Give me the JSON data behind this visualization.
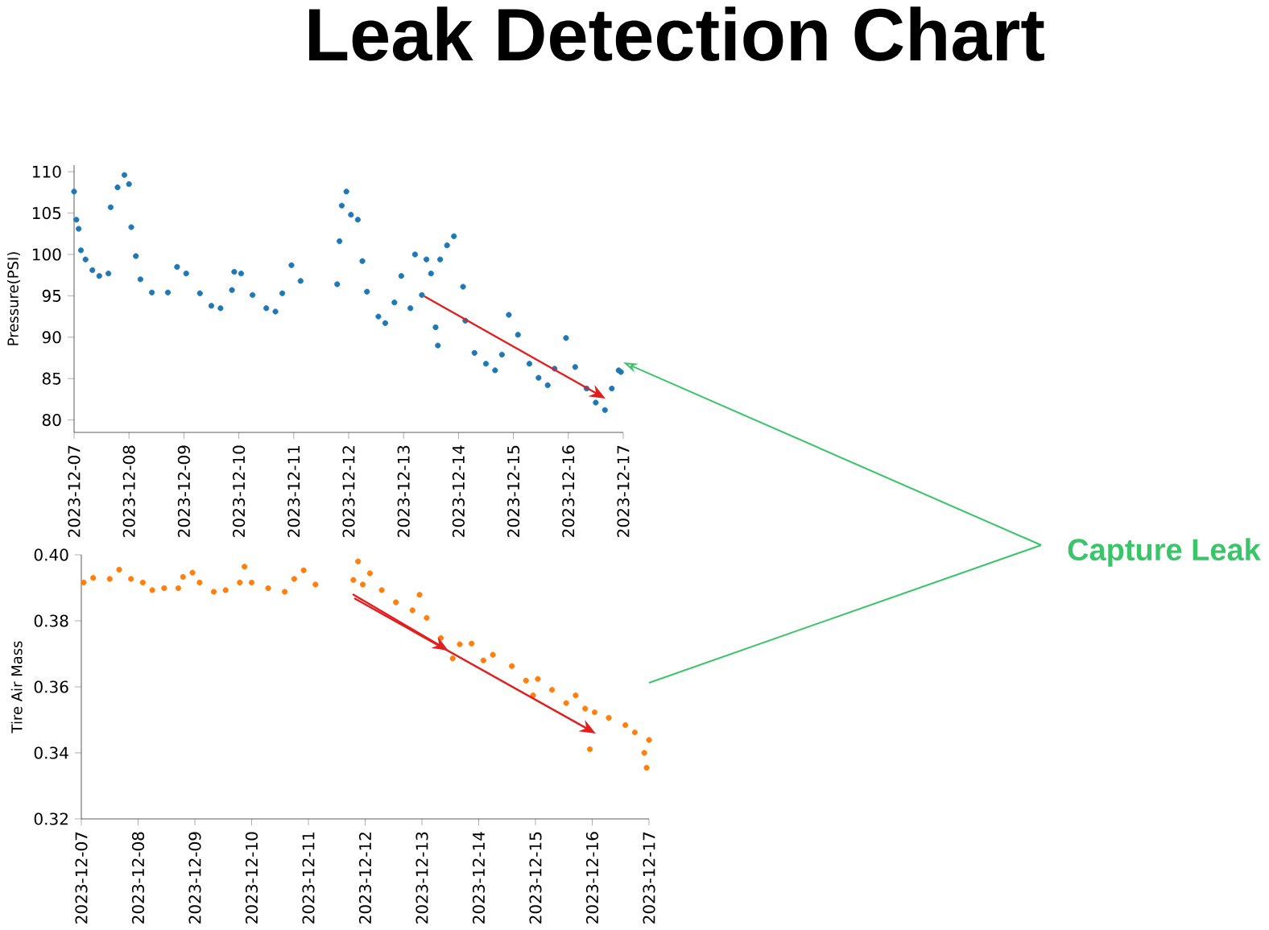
{
  "chart_data": [
    {
      "type": "scatter",
      "title": "Leak Detection Chart",
      "ylabel": "Pressure(PSI)",
      "color": "#1f77b4",
      "annotations": [
        "Capture Leak"
      ],
      "xlim": [
        "2023-12-07",
        "2023-12-17"
      ],
      "ylim": [
        78.5,
        110.8
      ],
      "xticks": [
        "2023-12-07",
        "2023-12-08",
        "2023-12-09",
        "2023-12-10",
        "2023-12-11",
        "2023-12-12",
        "2023-12-13",
        "2023-12-14",
        "2023-12-15",
        "2023-12-16",
        "2023-12-17"
      ],
      "yticks": [
        80,
        85,
        90,
        95,
        100,
        105,
        110
      ],
      "x": [
        "2023-12-07T00:00",
        "2023-12-07T01:00",
        "2023-12-07T02:00",
        "2023-12-07T03:00",
        "2023-12-07T05:00",
        "2023-12-07T08:00",
        "2023-12-07T11:00",
        "2023-12-07T15:00",
        "2023-12-07T16:00",
        "2023-12-07T19:00",
        "2023-12-07T22:00",
        "2023-12-08T00:00",
        "2023-12-08T01:00",
        "2023-12-08T03:00",
        "2023-12-08T05:00",
        "2023-12-08T10:00",
        "2023-12-08T17:00",
        "2023-12-08T21:00",
        "2023-12-09T01:00",
        "2023-12-09T07:00",
        "2023-12-09T12:00",
        "2023-12-09T16:00",
        "2023-12-09T21:00",
        "2023-12-09T22:00",
        "2023-12-10T01:00",
        "2023-12-10T06:00",
        "2023-12-10T12:00",
        "2023-12-10T16:00",
        "2023-12-10T19:00",
        "2023-12-10T23:00",
        "2023-12-11T03:00",
        "2023-12-11T19:00",
        "2023-12-11T20:00",
        "2023-12-11T21:00",
        "2023-12-11T23:00",
        "2023-12-12T01:00",
        "2023-12-12T04:00",
        "2023-12-12T06:00",
        "2023-12-12T08:00",
        "2023-12-12T13:00",
        "2023-12-12T16:00",
        "2023-12-12T20:00",
        "2023-12-12T23:00",
        "2023-12-13T03:00",
        "2023-12-13T05:00",
        "2023-12-13T08:00",
        "2023-12-13T10:00",
        "2023-12-13T12:00",
        "2023-12-13T14:00",
        "2023-12-13T15:00",
        "2023-12-13T16:00",
        "2023-12-13T19:00",
        "2023-12-13T22:00",
        "2023-12-14T02:00",
        "2023-12-14T03:00",
        "2023-12-14T07:00",
        "2023-12-14T12:00",
        "2023-12-14T16:00",
        "2023-12-14T19:00",
        "2023-12-14T22:00",
        "2023-12-15T02:00",
        "2023-12-15T07:00",
        "2023-12-15T11:00",
        "2023-12-15T15:00",
        "2023-12-15T18:00",
        "2023-12-15T23:00",
        "2023-12-16T03:00",
        "2023-12-16T08:00",
        "2023-12-16T12:00",
        "2023-12-16T16:00",
        "2023-12-16T19:00",
        "2023-12-16T22:00",
        "2023-12-16T23:00"
      ],
      "values": [
        107.6,
        104.2,
        103.1,
        100.5,
        99.4,
        98.1,
        97.4,
        97.7,
        105.7,
        108.1,
        109.6,
        108.5,
        103.3,
        99.8,
        97.0,
        95.4,
        95.4,
        98.5,
        97.7,
        95.3,
        93.8,
        93.5,
        95.7,
        97.9,
        97.7,
        95.1,
        93.5,
        93.1,
        95.3,
        98.7,
        96.8,
        96.4,
        101.6,
        105.9,
        107.6,
        104.8,
        104.2,
        99.2,
        95.5,
        92.5,
        91.7,
        94.2,
        97.4,
        93.5,
        100.0,
        95.1,
        99.4,
        97.7,
        91.2,
        89.0,
        99.4,
        101.1,
        102.2,
        96.1,
        92.0,
        88.1,
        86.8,
        86.0,
        87.9,
        92.7,
        90.3,
        86.8,
        85.1,
        84.2,
        86.2,
        89.9,
        86.4,
        83.8,
        82.1,
        81.2,
        83.8,
        86.0,
        85.8
      ]
    },
    {
      "type": "scatter",
      "ylabel": "Tire Air Mass",
      "color": "#ff7f0e",
      "xlim": [
        "2023-12-07",
        "2023-12-17"
      ],
      "ylim": [
        0.32,
        0.4
      ],
      "xticks": [
        "2023-12-07",
        "2023-12-08",
        "2023-12-09",
        "2023-12-10",
        "2023-12-11",
        "2023-12-12",
        "2023-12-13",
        "2023-12-14",
        "2023-12-15",
        "2023-12-16",
        "2023-12-17"
      ],
      "yticks": [
        0.32,
        0.34,
        0.36,
        0.38,
        {
          "value": 0.4,
          "label": "0.40"
        }
      ],
      "x": [
        "2023-12-07T01:00",
        "2023-12-07T05:00",
        "2023-12-07T12:00",
        "2023-12-07T16:00",
        "2023-12-07T21:00",
        "2023-12-08T02:00",
        "2023-12-08T06:00",
        "2023-12-08T11:00",
        "2023-12-08T17:00",
        "2023-12-08T19:00",
        "2023-12-08T23:00",
        "2023-12-09T02:00",
        "2023-12-09T08:00",
        "2023-12-09T13:00",
        "2023-12-09T19:00",
        "2023-12-09T21:00",
        "2023-12-10T00:00",
        "2023-12-10T07:00",
        "2023-12-10T14:00",
        "2023-12-10T18:00",
        "2023-12-10T22:00",
        "2023-12-11T03:00",
        "2023-12-11T19:00",
        "2023-12-11T21:00",
        "2023-12-11T23:00",
        "2023-12-12T02:00",
        "2023-12-12T07:00",
        "2023-12-12T13:00",
        "2023-12-12T20:00",
        "2023-12-12T23:00",
        "2023-12-13T02:00",
        "2023-12-13T08:00",
        "2023-12-13T13:00",
        "2023-12-13T16:00",
        "2023-12-13T21:00",
        "2023-12-14T02:00",
        "2023-12-14T06:00",
        "2023-12-14T14:00",
        "2023-12-14T20:00",
        "2023-12-14T23:00",
        "2023-12-15T01:00",
        "2023-12-15T07:00",
        "2023-12-15T13:00",
        "2023-12-15T17:00",
        "2023-12-15T21:00",
        "2023-12-15T23:00",
        "2023-12-16T01:00",
        "2023-12-16T07:00",
        "2023-12-16T14:00",
        "2023-12-16T18:00",
        "2023-12-16T22:00",
        "2023-12-16T23:00",
        "2023-12-17T00:00"
      ],
      "values": [
        0.3916,
        0.393,
        0.3927,
        0.3955,
        0.3927,
        0.3916,
        0.3893,
        0.3899,
        0.3899,
        0.3933,
        0.3946,
        0.3916,
        0.3888,
        0.3893,
        0.3916,
        0.3964,
        0.3916,
        0.3899,
        0.3888,
        0.3927,
        0.3953,
        0.391,
        0.3924,
        0.398,
        0.391,
        0.3944,
        0.3893,
        0.3856,
        0.3832,
        0.3879,
        0.3809,
        0.3748,
        0.3686,
        0.3729,
        0.3731,
        0.368,
        0.3697,
        0.3663,
        0.3619,
        0.3574,
        0.3624,
        0.3591,
        0.3551,
        0.3574,
        0.3534,
        0.3411,
        0.3523,
        0.3506,
        0.3484,
        0.3462,
        0.34,
        0.3355,
        0.3439
      ]
    }
  ]
}
